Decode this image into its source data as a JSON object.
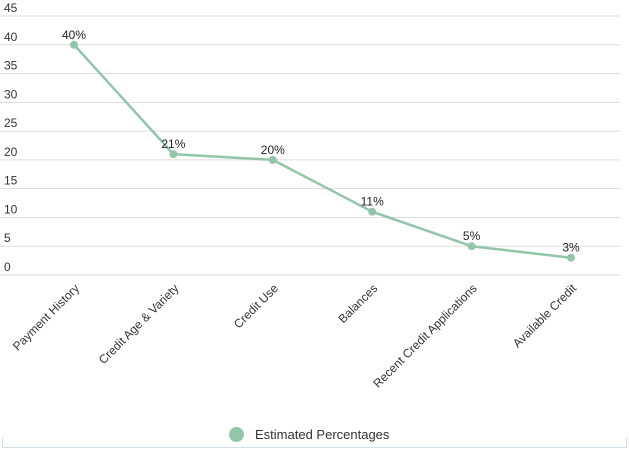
{
  "chart_data": {
    "type": "line",
    "categories": [
      "Payment History",
      "Credit Age & Variety",
      "Credit Use",
      "Balances",
      "Recent Credit Applications",
      "Available Credit"
    ],
    "series": [
      {
        "name": "Estimated Percentages",
        "values": [
          40,
          21,
          20,
          11,
          5,
          3
        ],
        "labels": [
          "40%",
          "21%",
          "20%",
          "11%",
          "5%",
          "3%"
        ]
      }
    ],
    "yticks": [
      "0",
      "5",
      "10",
      "15",
      "20",
      "25",
      "30",
      "35",
      "40",
      "45"
    ],
    "ylim": [
      0,
      45
    ],
    "grid": true,
    "legend_position": "bottom",
    "colors": {
      "series": "#93c5ab",
      "grid": "#dddddd"
    }
  }
}
